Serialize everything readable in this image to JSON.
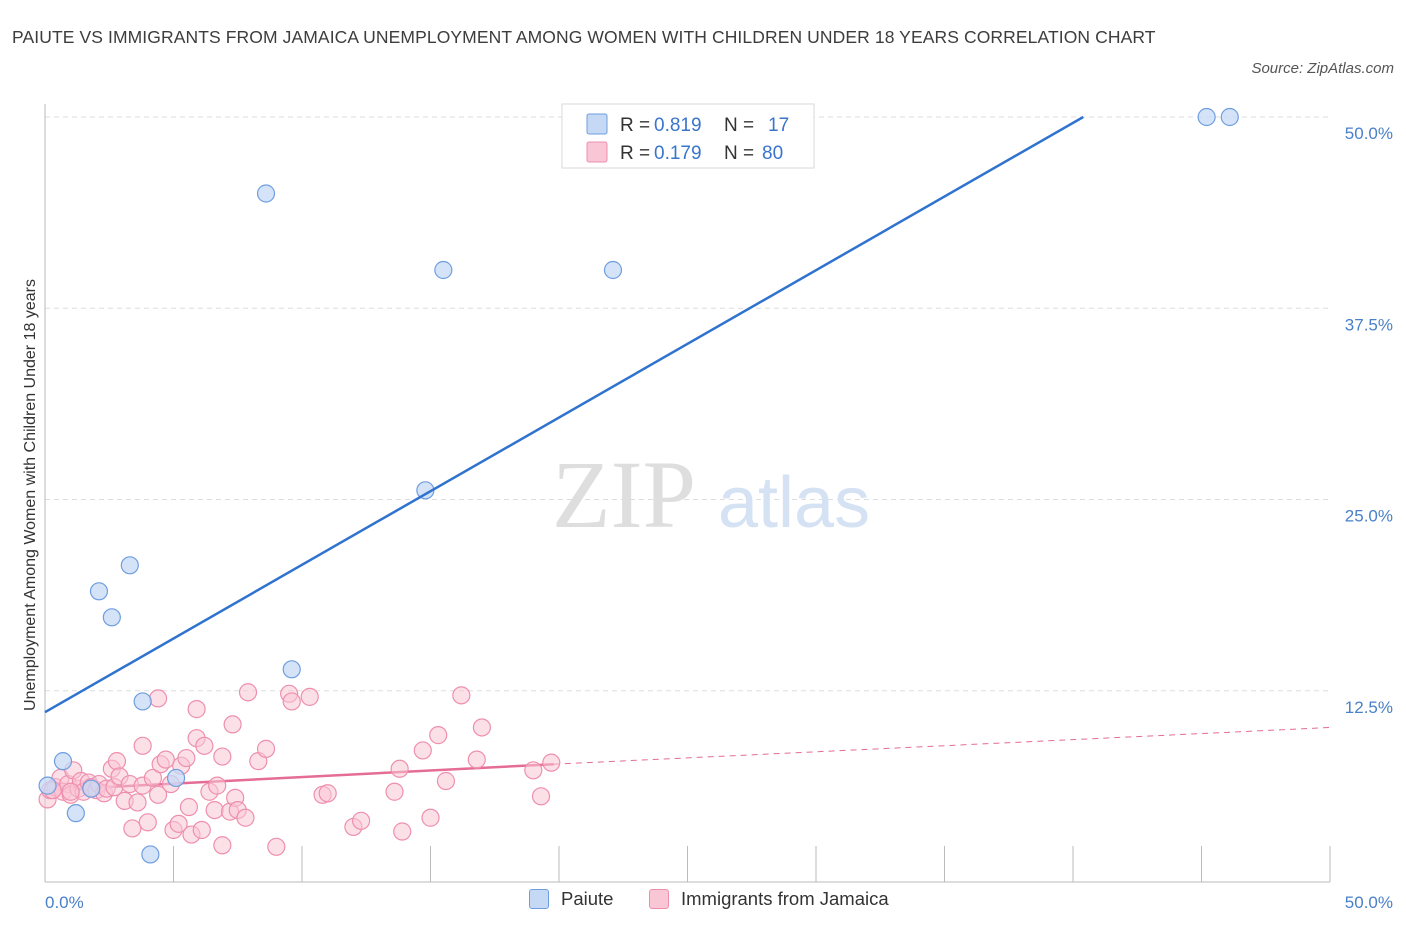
{
  "header": {
    "title": "PAIUTE VS IMMIGRANTS FROM JAMAICA UNEMPLOYMENT AMONG WOMEN WITH CHILDREN UNDER 18 YEARS CORRELATION CHART",
    "source": "Source: ZipAtlas.com"
  },
  "watermark": {
    "zip": "ZIP",
    "atlas": "atlas"
  },
  "colors": {
    "paiute_fill": "#c5d9f5",
    "paiute_stroke": "#6f9ee0",
    "paiute_line": "#2f73cf",
    "jamaica_fill": "#f9c6d5",
    "jamaica_stroke": "#ee8fae",
    "jamaica_line": "#e46c95",
    "tick_label": "#4a80c8",
    "grid": "#dddddd",
    "axis": "#bbbbbb"
  },
  "legend": {
    "r_label": "R =",
    "n_label": "N =",
    "paiute_r": "0.819",
    "paiute_n": "17",
    "jamaica_r": "0.179",
    "jamaica_n": "80"
  },
  "bottom_legend": {
    "paiute": "Paiute",
    "jamaica": "Immigrants from Jamaica"
  },
  "chart_data": {
    "type": "scatter",
    "title": "PAIUTE VS IMMIGRANTS FROM JAMAICA UNEMPLOYMENT AMONG WOMEN WITH CHILDREN UNDER 18 YEARS CORRELATION CHART",
    "xlabel": "",
    "ylabel": "Unemployment Among Women with Children Under 18 years",
    "xlim": [
      0,
      50
    ],
    "ylim": [
      0,
      50
    ],
    "x_tick_labels": [
      "0.0%",
      "50.0%"
    ],
    "y_ticks": [
      12.5,
      25.0,
      37.5,
      50.0
    ],
    "y_tick_labels": [
      "12.5%",
      "25.0%",
      "37.5%",
      "50.0%"
    ],
    "grid": true,
    "legend_position": "top-center",
    "series": [
      {
        "name": "Paiute",
        "r": 0.819,
        "n": 17,
        "trend": {
          "x": [
            0,
            40.4
          ],
          "y": [
            11.1,
            50.0
          ]
        },
        "points": [
          [
            0.1,
            6.3
          ],
          [
            0.7,
            7.9
          ],
          [
            1.2,
            4.5
          ],
          [
            1.8,
            6.1
          ],
          [
            2.1,
            19.0
          ],
          [
            2.6,
            17.3
          ],
          [
            3.3,
            20.7
          ],
          [
            3.8,
            11.8
          ],
          [
            4.1,
            1.8
          ],
          [
            5.1,
            6.8
          ],
          [
            8.6,
            45.0
          ],
          [
            9.6,
            13.9
          ],
          [
            14.8,
            25.6
          ],
          [
            15.5,
            40.0
          ],
          [
            22.1,
            40.0
          ],
          [
            45.2,
            50.0
          ],
          [
            46.1,
            50.0
          ]
        ]
      },
      {
        "name": "Immigrants from Jamaica",
        "r": 0.179,
        "n": 80,
        "trend": {
          "x": [
            0,
            19.8
          ],
          "y": [
            6.0,
            7.7
          ]
        },
        "trend_extension": {
          "x": [
            19.8,
            50.0
          ],
          "y": [
            7.7,
            10.1
          ]
        },
        "points": [
          [
            0.1,
            5.4
          ],
          [
            0.2,
            6.0
          ],
          [
            0.4,
            6.2
          ],
          [
            0.6,
            6.8
          ],
          [
            0.7,
            5.9
          ],
          [
            0.9,
            6.4
          ],
          [
            1.0,
            5.7
          ],
          [
            1.1,
            7.3
          ],
          [
            1.3,
            6.1
          ],
          [
            1.4,
            6.6
          ],
          [
            1.5,
            5.9
          ],
          [
            1.7,
            6.5
          ],
          [
            1.8,
            6.2
          ],
          [
            2.0,
            6.0
          ],
          [
            2.1,
            6.4
          ],
          [
            2.3,
            5.8
          ],
          [
            2.4,
            6.1
          ],
          [
            2.6,
            7.4
          ],
          [
            2.7,
            6.2
          ],
          [
            2.8,
            7.9
          ],
          [
            2.9,
            6.9
          ],
          [
            3.1,
            5.3
          ],
          [
            3.3,
            6.4
          ],
          [
            3.4,
            3.5
          ],
          [
            3.6,
            5.2
          ],
          [
            3.8,
            6.3
          ],
          [
            3.8,
            8.9
          ],
          [
            4.0,
            3.9
          ],
          [
            4.2,
            6.8
          ],
          [
            4.4,
            5.7
          ],
          [
            4.4,
            12.0
          ],
          [
            4.5,
            7.7
          ],
          [
            4.7,
            8.0
          ],
          [
            4.9,
            6.4
          ],
          [
            5.0,
            3.4
          ],
          [
            5.2,
            3.8
          ],
          [
            5.3,
            7.6
          ],
          [
            5.5,
            8.1
          ],
          [
            5.6,
            4.9
          ],
          [
            5.7,
            3.1
          ],
          [
            5.9,
            11.3
          ],
          [
            5.9,
            9.4
          ],
          [
            6.1,
            3.4
          ],
          [
            6.2,
            8.9
          ],
          [
            6.4,
            5.9
          ],
          [
            6.6,
            4.7
          ],
          [
            6.7,
            6.3
          ],
          [
            6.9,
            8.2
          ],
          [
            6.9,
            2.4
          ],
          [
            7.2,
            4.6
          ],
          [
            7.3,
            10.3
          ],
          [
            7.4,
            5.5
          ],
          [
            7.5,
            4.7
          ],
          [
            7.8,
            4.2
          ],
          [
            7.9,
            12.4
          ],
          [
            8.3,
            7.9
          ],
          [
            8.6,
            8.7
          ],
          [
            9.0,
            2.3
          ],
          [
            9.5,
            12.3
          ],
          [
            9.6,
            11.8
          ],
          [
            10.3,
            12.1
          ],
          [
            10.8,
            5.7
          ],
          [
            11.0,
            5.8
          ],
          [
            12.0,
            3.6
          ],
          [
            12.3,
            4.0
          ],
          [
            13.6,
            5.9
          ],
          [
            13.8,
            7.4
          ],
          [
            13.9,
            3.3
          ],
          [
            14.7,
            8.6
          ],
          [
            15.0,
            4.2
          ],
          [
            15.3,
            9.6
          ],
          [
            15.6,
            6.6
          ],
          [
            16.2,
            12.2
          ],
          [
            16.8,
            8.0
          ],
          [
            17.0,
            10.1
          ],
          [
            19.0,
            7.3
          ],
          [
            19.3,
            5.6
          ],
          [
            19.7,
            7.8
          ],
          [
            1.0,
            5.9
          ],
          [
            0.3,
            6.0
          ]
        ]
      }
    ]
  }
}
